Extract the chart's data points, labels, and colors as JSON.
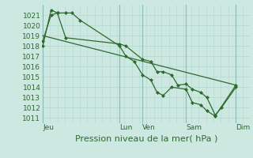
{
  "bg_color": "#cce8e0",
  "line_color": "#2d6a2d",
  "grid_minor_color": "#b0d8d0",
  "grid_major_color": "#8abdb5",
  "title": "Pression niveau de la mer( hPa )",
  "ylim": [
    1010.5,
    1022.0
  ],
  "yticks": [
    1011,
    1012,
    1013,
    1014,
    1015,
    1016,
    1017,
    1018,
    1019,
    1020,
    1021
  ],
  "xtick_labels": [
    "Jeu",
    "Lun",
    "Ven",
    "Sam",
    "Dim"
  ],
  "xtick_pos": [
    0.0,
    0.37,
    0.48,
    0.69,
    0.93
  ],
  "vline_pos": [
    0.0,
    0.37,
    0.48,
    0.69,
    0.93
  ],
  "series1_x": [
    0.0,
    0.04,
    0.07,
    0.11,
    0.14,
    0.18,
    0.37,
    0.4,
    0.44,
    0.48,
    0.52,
    0.55,
    0.58,
    0.62,
    0.69,
    0.72,
    0.76,
    0.79,
    0.83,
    0.93
  ],
  "series1_y": [
    1018.0,
    1021.5,
    1021.2,
    1021.2,
    1021.2,
    1020.5,
    1018.0,
    1017.0,
    1016.5,
    1015.2,
    1014.7,
    1013.5,
    1013.2,
    1014.0,
    1013.8,
    1012.5,
    1012.3,
    1011.7,
    1011.2,
    1014.2
  ],
  "series2_x": [
    0.0,
    0.04,
    0.07,
    0.11,
    0.37,
    0.4,
    0.48,
    0.52,
    0.55,
    0.58,
    0.62,
    0.65,
    0.69,
    0.72,
    0.76,
    0.79,
    0.83,
    0.86,
    0.93
  ],
  "series2_y": [
    1018.5,
    1021.0,
    1021.2,
    1018.8,
    1018.2,
    1018.0,
    1016.7,
    1016.5,
    1015.5,
    1015.5,
    1015.2,
    1014.2,
    1014.3,
    1013.8,
    1013.5,
    1013.0,
    1011.3,
    1012.0,
    1014.0
  ],
  "series3_x": [
    0.0,
    0.93
  ],
  "series3_y": [
    1019.0,
    1014.2
  ],
  "title_fontsize": 8,
  "tick_fontsize": 6.5,
  "marker_size": 2.5,
  "line_width": 0.9
}
